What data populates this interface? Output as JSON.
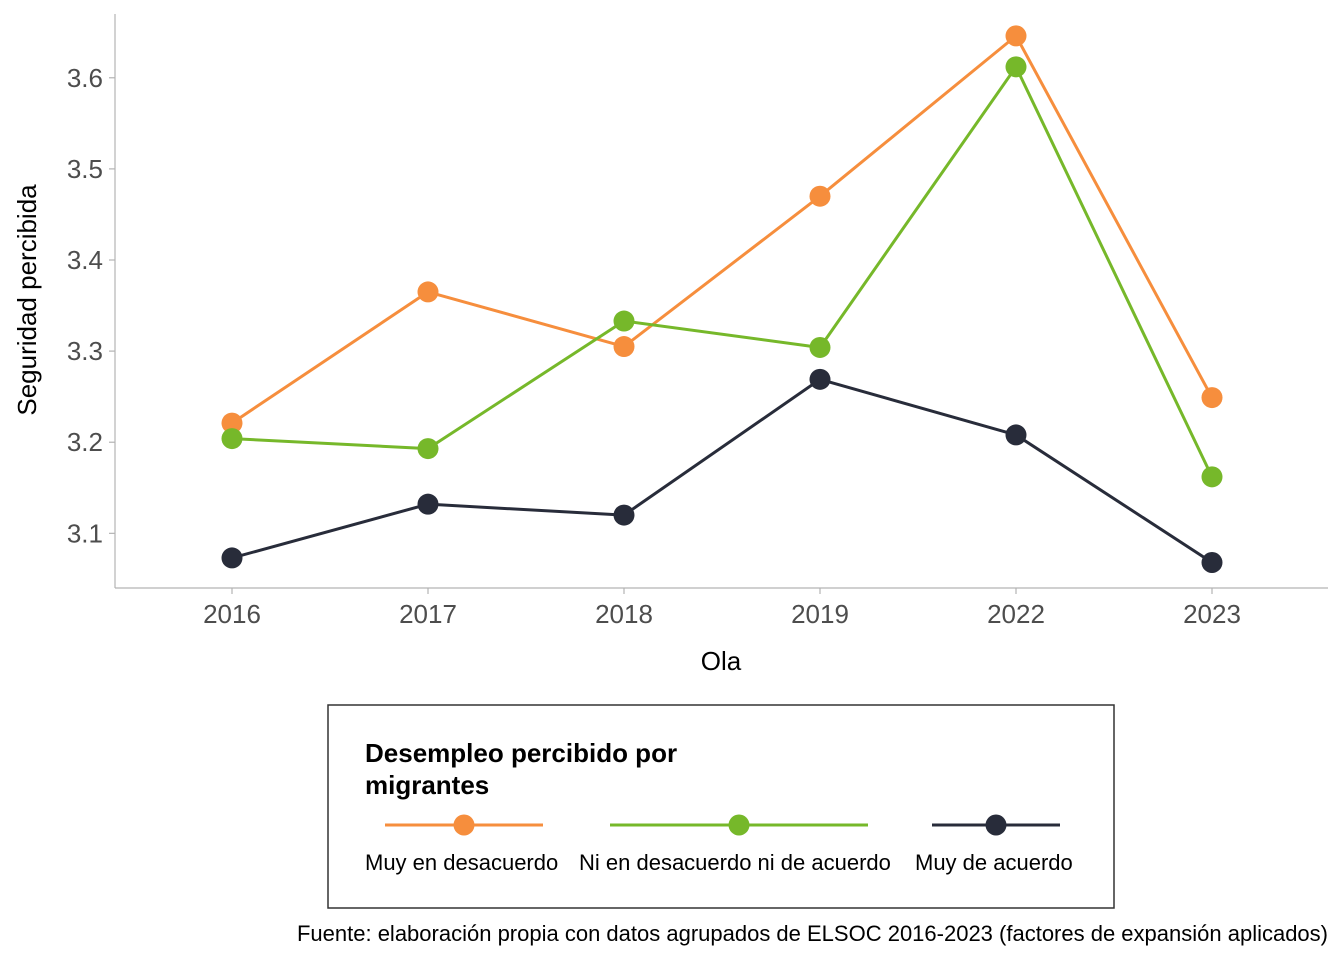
{
  "chart_data": {
    "type": "line",
    "x": [
      "2016",
      "2017",
      "2018",
      "2019",
      "2022",
      "2023"
    ],
    "xlabel": "Ola",
    "ylabel": "Seguridad percibida",
    "ylim": [
      3.04,
      3.67
    ],
    "yticks": [
      "3.1",
      "3.2",
      "3.3",
      "3.4",
      "3.5",
      "3.6"
    ],
    "grid": false,
    "legend": {
      "title_lines": [
        "Desempleo percibido por",
        "migrantes"
      ],
      "placement": "bottom"
    },
    "series": [
      {
        "name": "Muy en desacuerdo",
        "color": "#F68E3D",
        "values": [
          3.221,
          3.365,
          3.305,
          3.47,
          3.646,
          3.249
        ]
      },
      {
        "name": "Ni en desacuerdo ni de acuerdo",
        "color": "#76B82A",
        "values": [
          3.204,
          3.193,
          3.333,
          3.304,
          3.612,
          3.162
        ]
      },
      {
        "name": "Muy de acuerdo",
        "color": "#282C3A",
        "values": [
          3.073,
          3.132,
          3.12,
          3.269,
          3.208,
          3.068
        ]
      }
    ],
    "caption": "Fuente: elaboración propia con datos agrupados de ELSOC 2016-2023 (factores de expansión aplicados)"
  }
}
